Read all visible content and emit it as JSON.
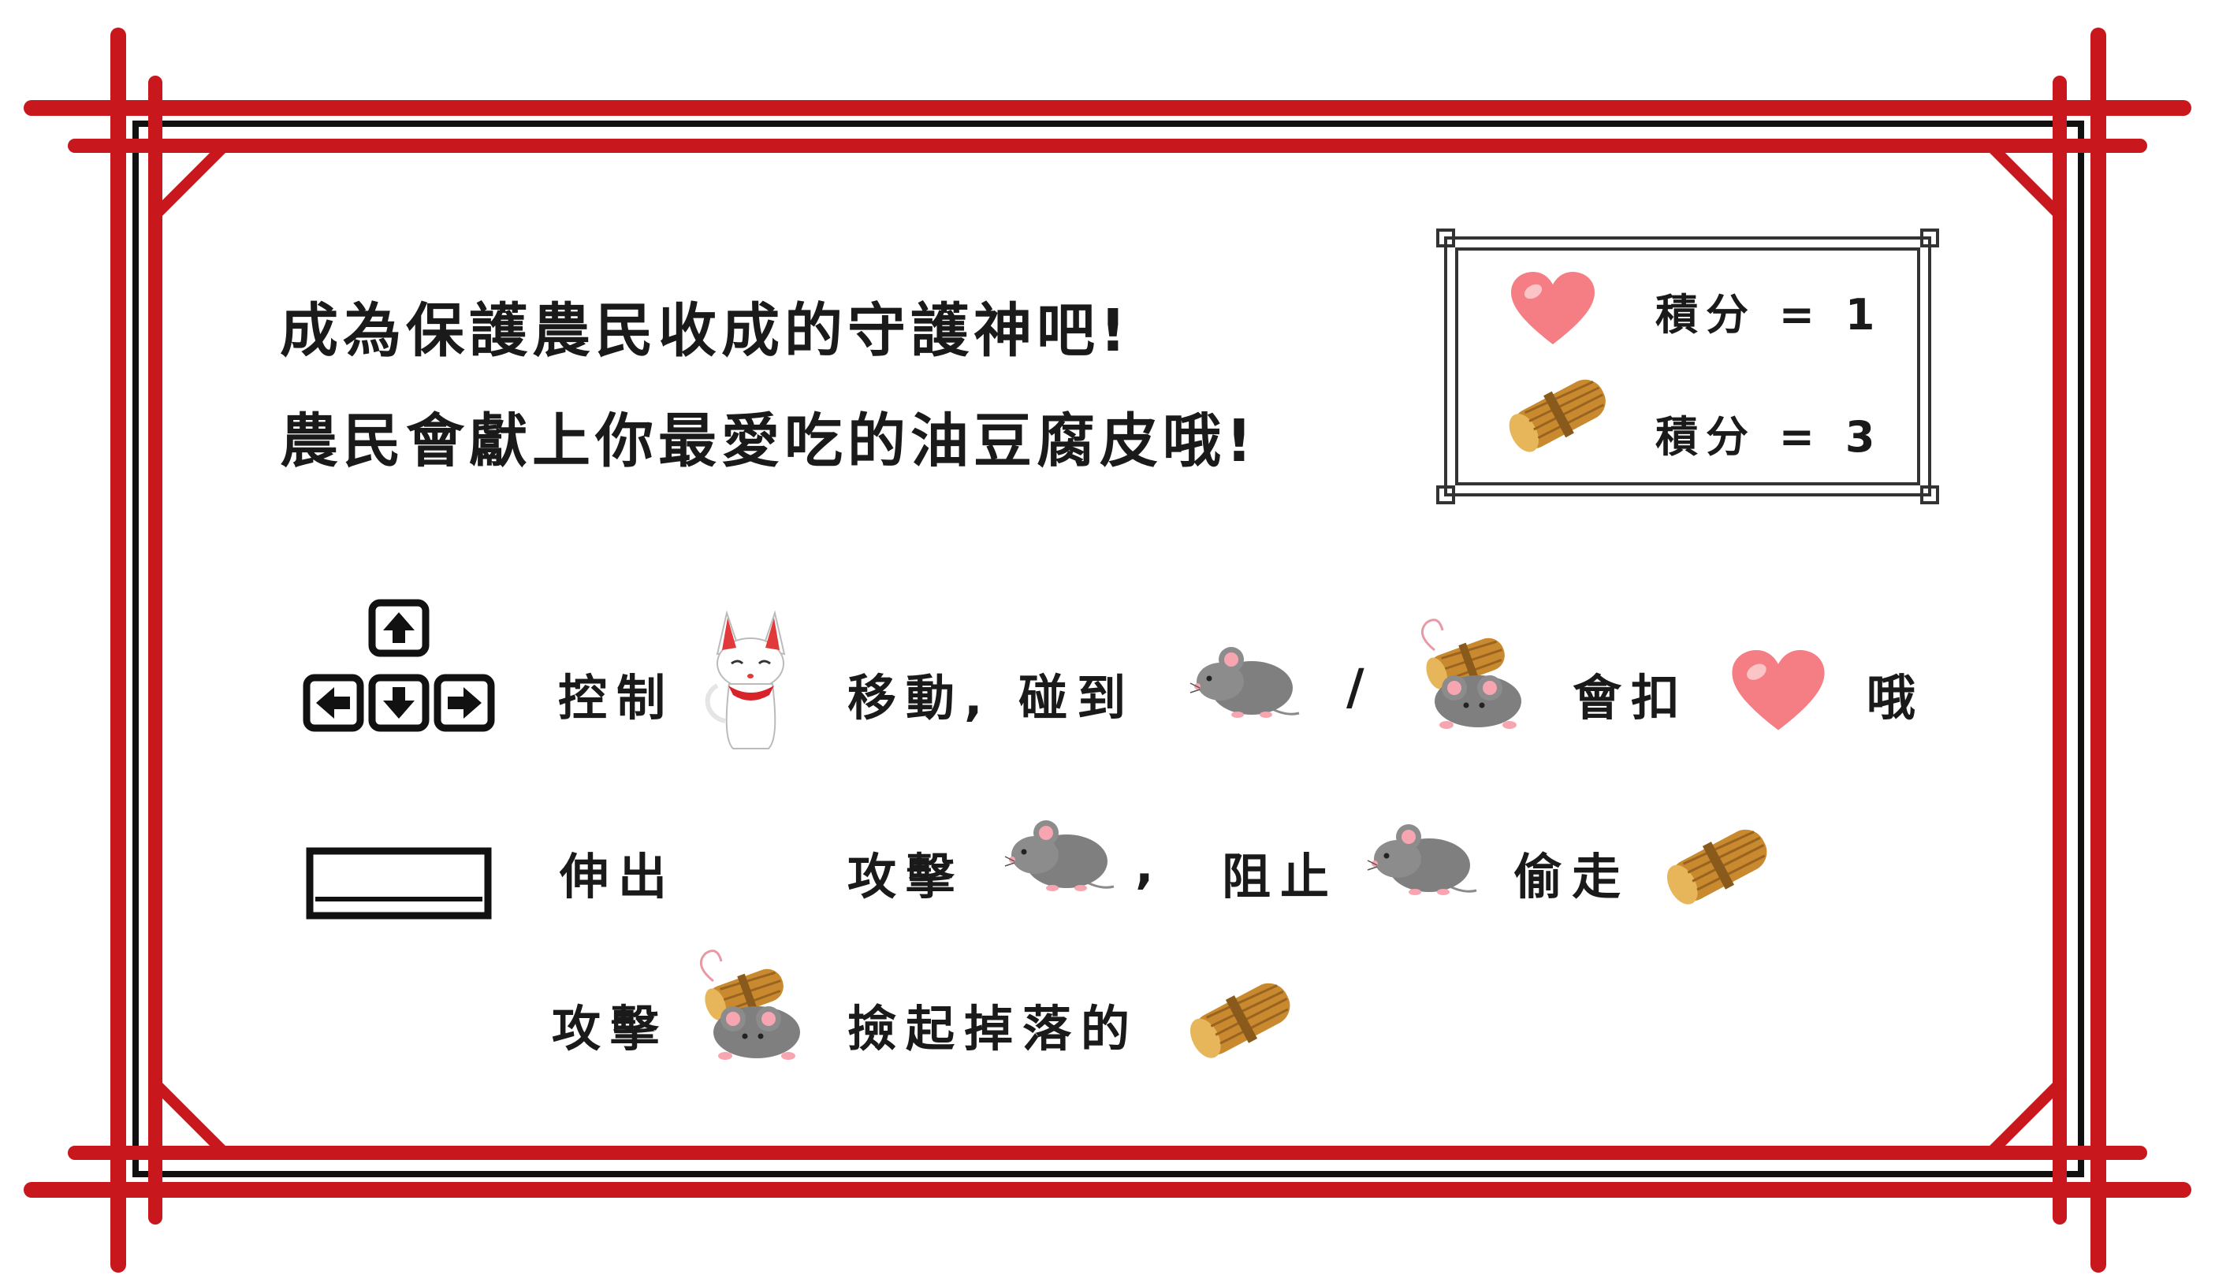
{
  "colors": {
    "frame_red": "#c8171d",
    "frame_black": "#111111",
    "heart": "#f57e85",
    "tofu": "#c98a2f",
    "mouse": "#7f7f7f"
  },
  "intro": {
    "line1": "成為保護農民收成的守護神吧!",
    "line2": "農民會獻上你最愛吃的油豆腐皮哦!"
  },
  "score_box": {
    "heart_score": "積分 = 1",
    "tofu_score": "積分 = 3"
  },
  "instructions": {
    "row1": {
      "control": "控制",
      "move_touch": "移動, 碰到",
      "slash": "/",
      "deduct": "會扣",
      "oh": "哦"
    },
    "row2": {
      "extend": "伸出",
      "attack": "攻擊",
      "comma": ",",
      "stop": "阻止",
      "steal": "偷走"
    },
    "row3": {
      "attack": "攻擊",
      "pickup": "撿起掉落的"
    }
  },
  "icons": {
    "arrow_keys": "arrow-keys-icon",
    "space_key": "space-key-icon",
    "fox": "fox-icon",
    "mouse": "mouse-icon",
    "mouse_with_tofu": "mouse-carrying-tofu-icon",
    "heart": "heart-icon",
    "tofu": "fried-tofu-icon"
  }
}
